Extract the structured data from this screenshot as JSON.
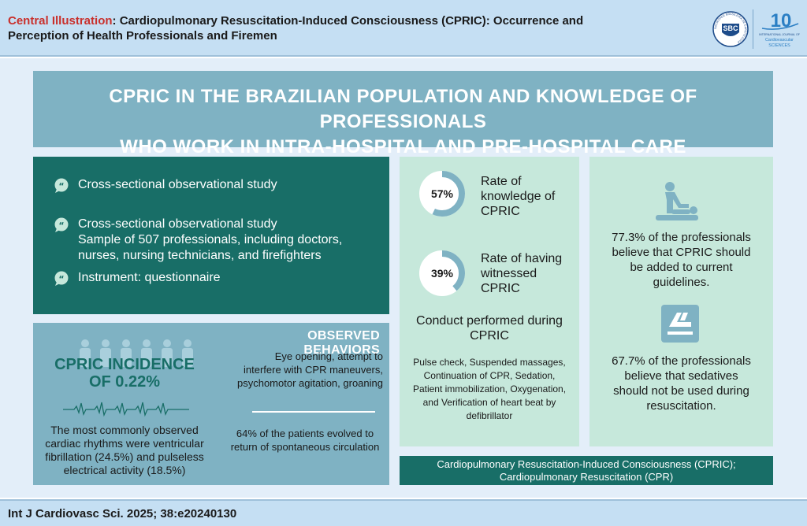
{
  "header": {
    "label": "Central Illustration",
    "title_line1": ": Cardiopulmonary Resuscitation-Induced Consciousness (CPRIC): Occurrence and",
    "title_line2": "Perception of Health Professionals and Firemen",
    "sbc_logo_text": "SBC",
    "sbc_logo_ring_text": "SOCIEDADE BRASILEIRA DE CARDIOLOGIA",
    "ijcs_number": "10",
    "ijcs_line1": "INTERNATIONAL JOURNAL OF",
    "ijcs_line2": "Cardiovascular",
    "ijcs_line3": "SCIENCES",
    "icons": [
      "sbc-logo",
      "ijcs-logo"
    ]
  },
  "banner": {
    "line1": "CPRIC IN THE BRAZILIAN POPULATION AND KNOWLEDGE OF PROFESSIONALS",
    "line2": "WHO WORK IN INTRA-HOSPITAL AND PRE-HOSPITAL CARE"
  },
  "design": {
    "item1": "Cross-sectional observational study",
    "item2_line1": "Cross-sectional observational study",
    "item2_line2": "Sample of 507 professionals, including doctors,",
    "item2_line3": "nurses, nursing technicians, and firefighters",
    "item3": "Instrument: questionnaire",
    "icon": "speech-bubble-icon"
  },
  "incidence": {
    "title_line1": "CPRIC INCIDENCE",
    "title_line2": "OF 0.22%",
    "rhythms_line1": "The most commonly observed",
    "rhythms_line2": "cardiac rhythms were ventricular",
    "rhythms_line3": "fibrillation (24.5%) and pulseless",
    "rhythms_line4": "electrical activity (18.5%)",
    "icons": [
      "people-icon",
      "ecg-icon"
    ]
  },
  "observed": {
    "title": "OBSERVED BEHAVIORS",
    "text_line1": "Eye opening, attempt to",
    "text_line2": "interfere with CPR maneuvers,",
    "text_line3": "psychomotor agitation, groaning",
    "return_line1": "64% of the patients evolved to",
    "return_line2": "return of spontaneous circulation"
  },
  "stats": {
    "knowledge": {
      "value": "57%",
      "fraction": 0.57,
      "label_line1": "Rate of",
      "label_line2": "knowledge of",
      "label_line3": "CPRIC"
    },
    "witnessed": {
      "value": "39%",
      "fraction": 0.39,
      "label_line1": "Rate of having",
      "label_line2": "witnessed",
      "label_line3": "CPRIC"
    },
    "ring_color": "#7fb2c3"
  },
  "conduct": {
    "title_line1": "Conduct performed during",
    "title_line2": "CPRIC",
    "text_line1": "Pulse check, Suspended massages,",
    "text_line2": "Continuation of CPR, Sedation,",
    "text_line3": "Patient immobilization, Oxygenation,",
    "text_line4": "and Verification of heart beat by",
    "text_line5": "defibrillator"
  },
  "right": {
    "stat1_line1": "77.3% of the professionals",
    "stat1_line2": "believe that CPRIC should",
    "stat1_line3": "be added to current",
    "stat1_line4": "guidelines.",
    "stat2_line1": "67.7% of the professionals",
    "stat2_line2": "believe that sedatives",
    "stat2_line3": "should not be used during",
    "stat2_line4": "resuscitation.",
    "icons": [
      "cpr-icon",
      "chest-compression-icon"
    ]
  },
  "abbreviations": {
    "line1": "Cardiopulmonary Resuscitation-Induced Consciousness (CPRIC);",
    "line2": "Cardiopulmonary Resuscitation (CPR)"
  },
  "footer": {
    "citation": "Int J Cardiovasc Sci. 2025; 38:e20240130"
  },
  "colors": {
    "dark_teal": "#186e67",
    "light_teal": "#7fb2c3",
    "mint": "#c6e8db",
    "header_blue": "#c5dff3",
    "accent_red": "#c9302c"
  }
}
